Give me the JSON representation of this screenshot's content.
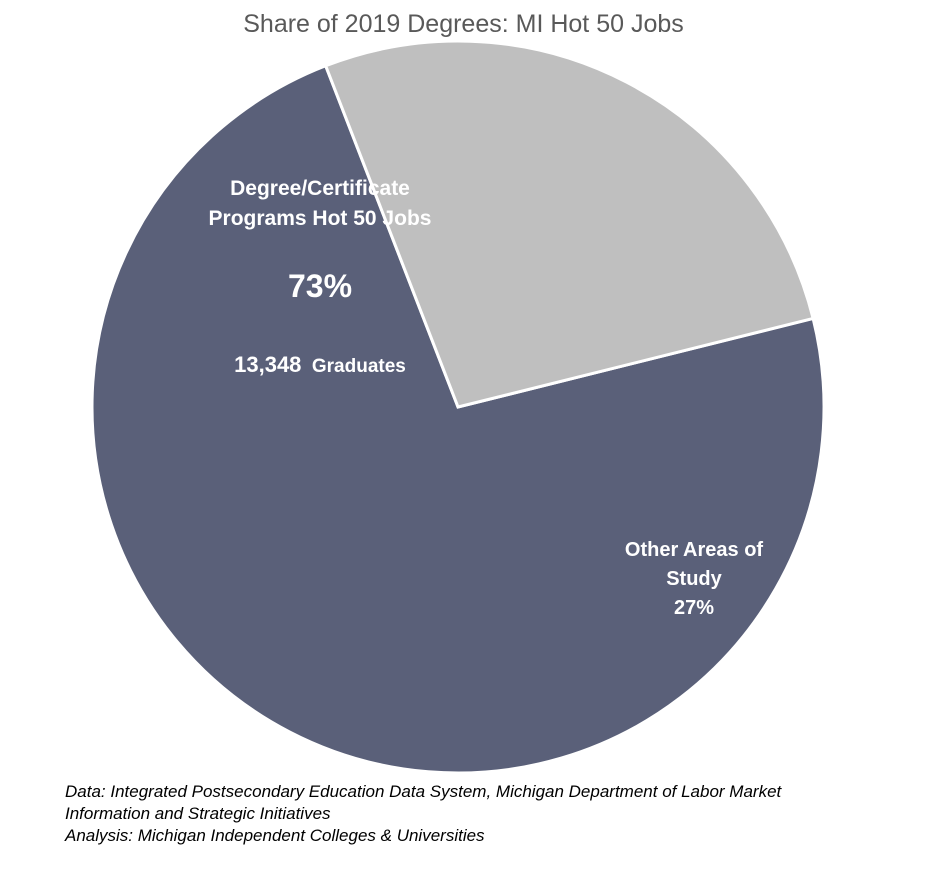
{
  "chart_data": {
    "type": "pie",
    "title": "Share of 2019 Degrees: MI Hot 50 Jobs",
    "slices": [
      {
        "label_lines": [
          "Degree/Certificate",
          "Programs Hot 50 Jobs"
        ],
        "percent_label": "73%",
        "value": 73,
        "graduates_number": "13,348",
        "graduates_text": "Graduates",
        "color": "#5a6079"
      },
      {
        "label_lines": [
          "Other Areas of",
          "Study"
        ],
        "percent_label": "27%",
        "value": 27,
        "color": "#bfbfbf"
      }
    ],
    "start_angle_deg": 76,
    "legend": "none"
  },
  "source": {
    "line1": "Data: Integrated Postsecondary Education Data System, Michigan Department of Labor Market",
    "line2": "Information and Strategic Initiatives",
    "line3": "Analysis: Michigan Independent Colleges & Universities"
  }
}
